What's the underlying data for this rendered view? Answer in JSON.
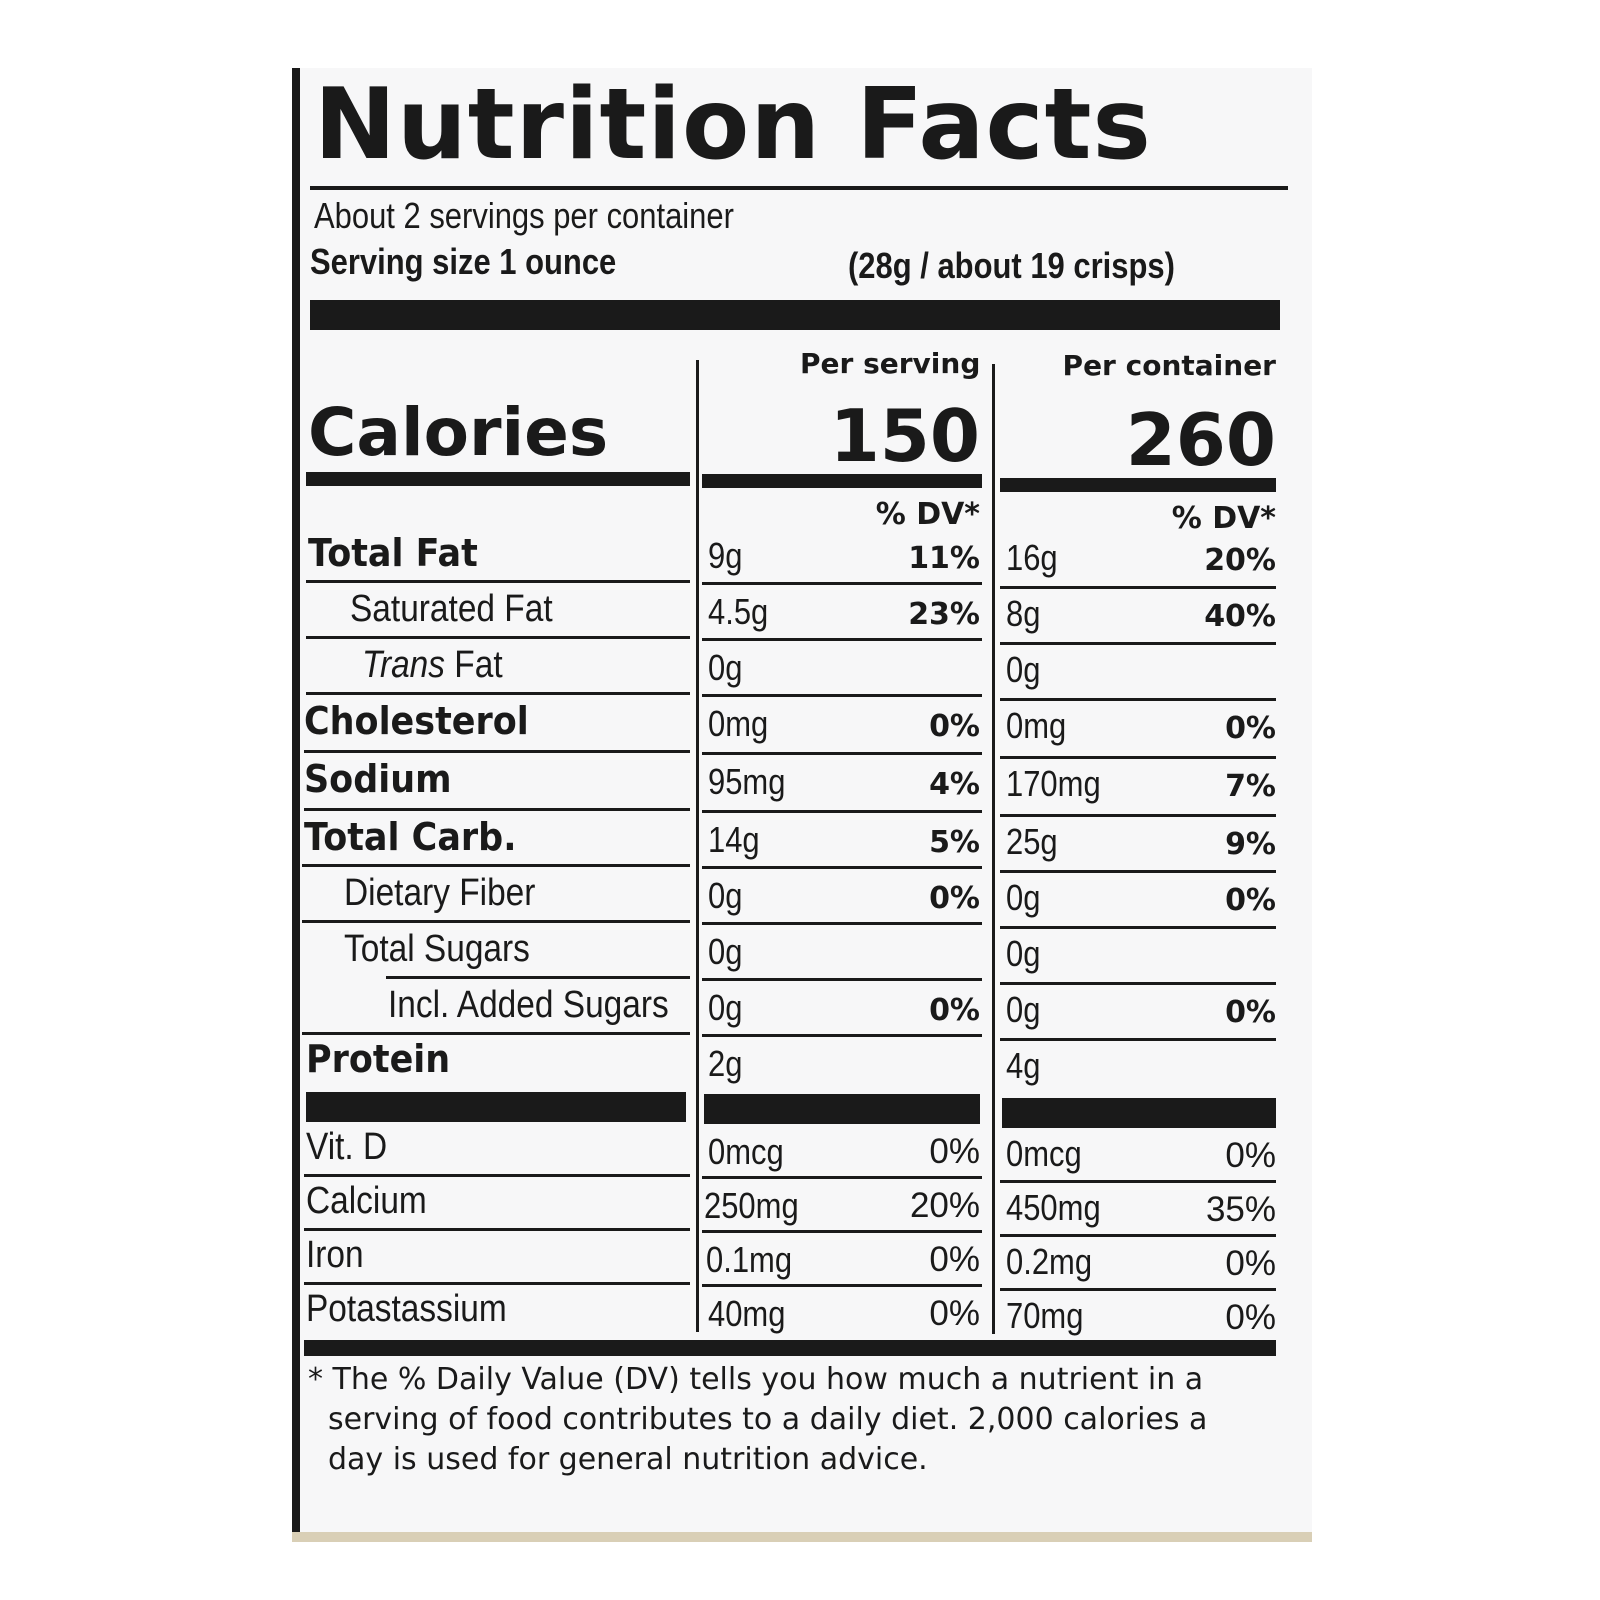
{
  "title": "Nutrition Facts",
  "servings_per_container": "About 2 servings per container",
  "serving_size_label": "Serving size 1 ounce",
  "serving_size_detail": "(28g / about 19 crisps)",
  "columns": {
    "per_serving": "Per serving",
    "per_container": "Per container",
    "dv": "% DV*"
  },
  "calories": {
    "label": "Calories",
    "per_serving": "150",
    "per_container": "260"
  },
  "nutrients": [
    {
      "label": "Total Fat",
      "serving_amount": "9g",
      "serving_dv": "11%",
      "container_amount": "16g",
      "container_dv": "20%"
    },
    {
      "label": "Saturated Fat",
      "serving_amount": "4.5g",
      "serving_dv": "23%",
      "container_amount": "8g",
      "container_dv": "40%"
    },
    {
      "label_italic": "Trans",
      "label_rest": " Fat",
      "serving_amount": "0g",
      "serving_dv": "",
      "container_amount": "0g",
      "container_dv": ""
    },
    {
      "label": "Cholesterol",
      "serving_amount": "0mg",
      "serving_dv": "0%",
      "container_amount": "0mg",
      "container_dv": "0%"
    },
    {
      "label": "Sodium",
      "serving_amount": "95mg",
      "serving_dv": "4%",
      "container_amount": "170mg",
      "container_dv": "7%"
    },
    {
      "label": "Total Carb.",
      "serving_amount": "14g",
      "serving_dv": "5%",
      "container_amount": "25g",
      "container_dv": "9%"
    },
    {
      "label": "Dietary Fiber",
      "serving_amount": "0g",
      "serving_dv": "0%",
      "container_amount": "0g",
      "container_dv": "0%"
    },
    {
      "label": "Total Sugars",
      "serving_amount": "0g",
      "serving_dv": "",
      "container_amount": "0g",
      "container_dv": ""
    },
    {
      "label": "Incl. Added Sugars",
      "serving_amount": "0g",
      "serving_dv": "0%",
      "container_amount": "0g",
      "container_dv": "0%"
    },
    {
      "label": "Protein",
      "serving_amount": "2g",
      "serving_dv": "",
      "container_amount": "4g",
      "container_dv": ""
    }
  ],
  "vitamins": [
    {
      "label": "Vit. D",
      "serving_amount": "0mcg",
      "serving_dv": "0%",
      "container_amount": "0mcg",
      "container_dv": "0%"
    },
    {
      "label": "Calcium",
      "serving_amount": "250mg",
      "serving_dv": "20%",
      "container_amount": "450mg",
      "container_dv": "35%"
    },
    {
      "label": "Iron",
      "serving_amount": "0.1mg",
      "serving_dv": "0%",
      "container_amount": "0.2mg",
      "container_dv": "0%"
    },
    {
      "label": "Potastassium",
      "serving_amount": "40mg",
      "serving_dv": "0%",
      "container_amount": "70mg",
      "container_dv": "0%"
    }
  ],
  "footnote": {
    "line1": "* The % Daily Value (DV) tells you how much a nutrient in a",
    "line2": "serving of food contributes to a daily diet. 2,000 calories a",
    "line3": "day is used for general nutrition advice."
  },
  "colors": {
    "ink": "#1a1a1a",
    "paper": "#f7f7f8"
  }
}
